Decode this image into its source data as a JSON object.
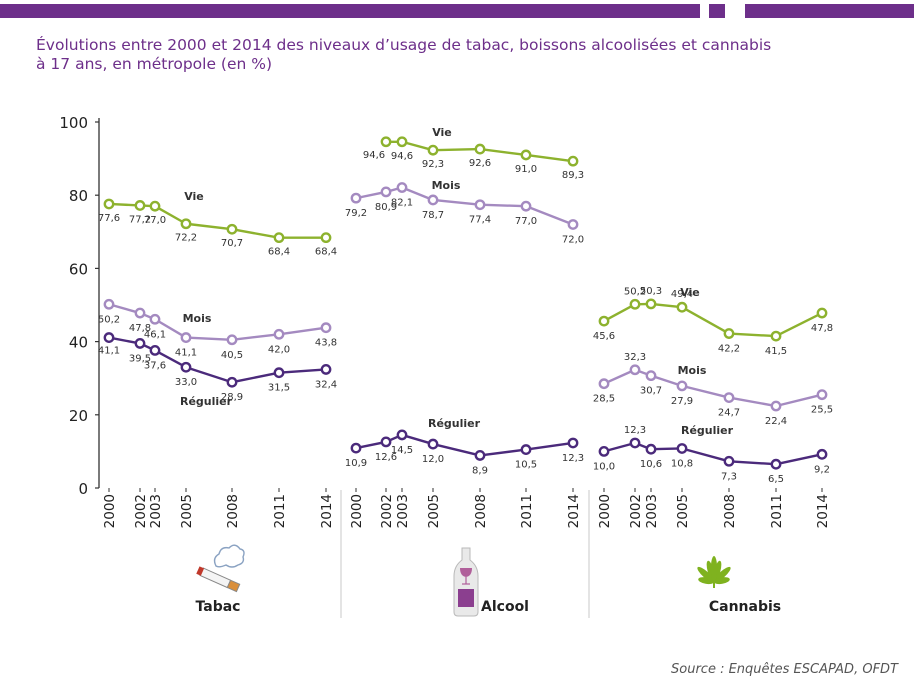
{
  "header_bar_color": "#6d2f8a",
  "title_line1": "Évolutions entre 2000 et 2014 des niveaux d’usage de tabac, boissons alcoolisées et cannabis",
  "title_line2": "à 17 ans, en métropole (en %)",
  "source": "Source : Enquêtes ESCAPAD, OFDT",
  "colors": {
    "vie": "#8db22e",
    "mois": "#a48ac0",
    "regulier": "#4b2a7b",
    "axis": "#333333",
    "title": "#6d2f8a"
  },
  "chart_data": {
    "type": "line",
    "ylim": [
      0,
      100
    ],
    "yticks": [
      0,
      20,
      40,
      60,
      80,
      100
    ],
    "panels": [
      {
        "name": "Tabac",
        "icon": "cigarette-icon",
        "x": [
          "2000",
          "2002",
          "2003",
          "2005",
          "2008",
          "2011",
          "2014"
        ],
        "series": [
          {
            "key": "vie",
            "name": "Vie",
            "values": [
              77.6,
              77.2,
              77.0,
              72.2,
              70.7,
              68.4,
              68.4
            ],
            "labels": [
              "77,6",
              "77,2",
              "77,0",
              "72,2",
              "70,7",
              "68,4",
              "68,4"
            ]
          },
          {
            "key": "mois",
            "name": "Mois",
            "values": [
              50.2,
              47.8,
              46.1,
              41.1,
              40.5,
              42.0,
              43.8
            ],
            "labels": [
              "50,2",
              "47,8",
              "46,1",
              "41,1",
              "40,5",
              "42,0",
              "43,8"
            ]
          },
          {
            "key": "regulier",
            "name": "Régulier",
            "values": [
              41.1,
              39.5,
              37.6,
              33.0,
              28.9,
              31.5,
              32.4
            ],
            "labels": [
              "41,1",
              "39,5",
              "37,6",
              "33,0",
              "28,9",
              "31,5",
              "32,4"
            ]
          }
        ]
      },
      {
        "name": "Alcool",
        "icon": "bottle-glass-icon",
        "x": [
          "2000",
          "2002",
          "2003",
          "2005",
          "2008",
          "2011",
          "2014"
        ],
        "series": [
          {
            "key": "vie",
            "name": "Vie",
            "values": [
              null,
              94.6,
              94.6,
              92.3,
              92.6,
              91.0,
              89.3
            ],
            "labels": [
              null,
              "94,6",
              "94,6",
              "92,3",
              "92,6",
              "91,0",
              "89,3"
            ]
          },
          {
            "key": "mois",
            "name": "Mois",
            "values": [
              79.2,
              80.9,
              82.1,
              78.7,
              77.4,
              77.0,
              72.0
            ],
            "labels": [
              "79,2",
              "80,9",
              "82,1",
              "78,7",
              "77,4",
              "77,0",
              "72,0"
            ]
          },
          {
            "key": "regulier",
            "name": "Régulier",
            "values": [
              10.9,
              12.6,
              14.5,
              12.0,
              8.9,
              10.5,
              12.3
            ],
            "labels": [
              "10,9",
              "12,6",
              "14,5",
              "12,0",
              "8,9",
              "10,5",
              "12,3"
            ]
          }
        ]
      },
      {
        "name": "Cannabis",
        "icon": "cannabis-leaf-icon",
        "x": [
          "2000",
          "2002",
          "2003",
          "2005",
          "2008",
          "2011",
          "2014"
        ],
        "series": [
          {
            "key": "vie",
            "name": "Vie",
            "values": [
              45.6,
              50.2,
              50.3,
              49.4,
              42.2,
              41.5,
              47.8
            ],
            "labels": [
              "45,6",
              "50,2",
              "50,3",
              "49,4",
              "42,2",
              "41,5",
              "47,8"
            ]
          },
          {
            "key": "mois",
            "name": "Mois",
            "values": [
              28.5,
              32.3,
              30.7,
              27.9,
              24.7,
              22.4,
              25.5
            ],
            "labels": [
              "28,5",
              "32,3",
              "30,7",
              "27,9",
              "24,7",
              "22,4",
              "25,5"
            ]
          },
          {
            "key": "regulier",
            "name": "Régulier",
            "values": [
              10.0,
              12.3,
              10.6,
              10.8,
              7.3,
              6.5,
              9.2
            ],
            "labels": [
              "10,0",
              "12,3",
              "10,6",
              "10,8",
              "7,3",
              "6,5",
              "9,2"
            ]
          }
        ]
      }
    ]
  }
}
